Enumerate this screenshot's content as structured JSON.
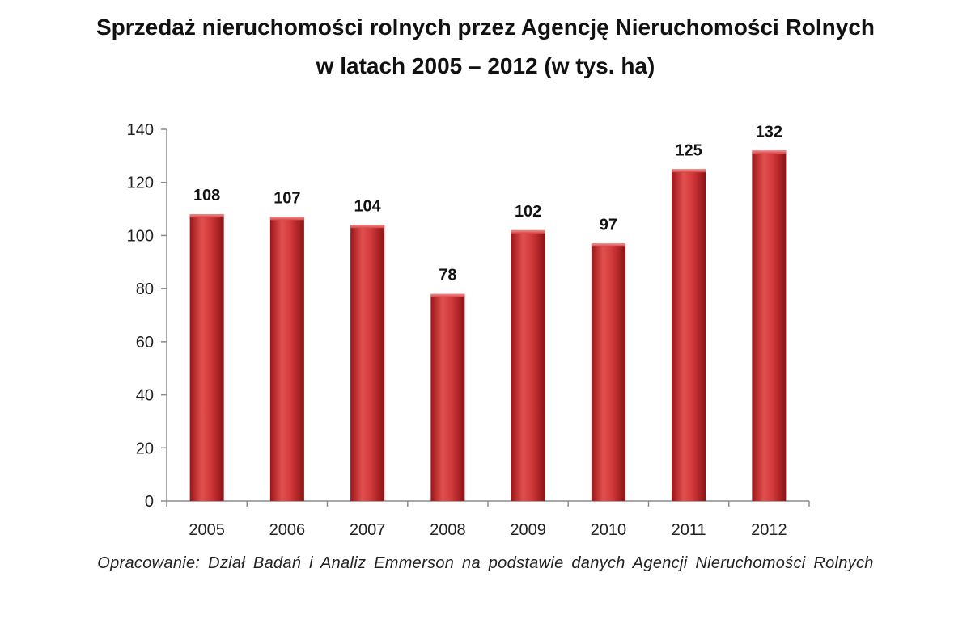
{
  "chart_data": {
    "type": "bar",
    "title_line1": "Sprzedaż nieruchomości rolnych przez Agencję Nieruchomości Rolnych",
    "title_line2": "w latach 2005 – 2012 (w tys. ha)",
    "categories": [
      "2005",
      "2006",
      "2007",
      "2008",
      "2009",
      "2010",
      "2011",
      "2012"
    ],
    "values": [
      108,
      107,
      104,
      78,
      102,
      97,
      125,
      132
    ],
    "data_labels": [
      "108",
      "107",
      "104",
      "78",
      "102",
      "97",
      "125",
      "132"
    ],
    "y_ticks": [
      "0",
      "20",
      "40",
      "60",
      "80",
      "100",
      "120",
      "140"
    ],
    "ylim": [
      0,
      140
    ],
    "grid": false,
    "legend": "none",
    "bar_color": "#c8282b"
  },
  "caption": "Opracowanie: Dział Badań i Analiz Emmerson na podstawie danych Agencji Nieruchomości Rolnych"
}
